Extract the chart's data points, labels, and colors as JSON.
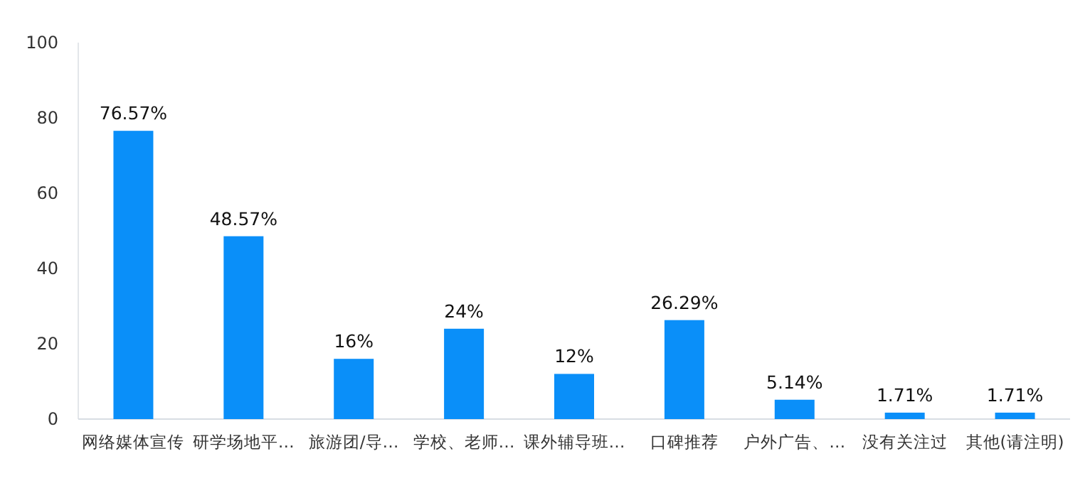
{
  "chart_data": {
    "type": "bar",
    "categories": [
      "网络媒体宣传",
      "研学场地平…",
      "旅游团/导…",
      "学校、老师…",
      "课外辅导班…",
      "口碑推荐",
      "户外广告、…",
      "没有关注过",
      "其他(请注明)"
    ],
    "values": [
      76.57,
      48.57,
      16,
      24,
      12,
      26.29,
      5.14,
      1.71,
      1.71
    ],
    "value_labels": [
      "76.57%",
      "48.57%",
      "16%",
      "24%",
      "12%",
      "26.29%",
      "5.14%",
      "1.71%",
      "1.71%"
    ],
    "color": "#0a8ff9",
    "ylim": [
      0,
      100
    ],
    "yticks": [
      0,
      20,
      40,
      60,
      80,
      100
    ],
    "grid": false
  }
}
